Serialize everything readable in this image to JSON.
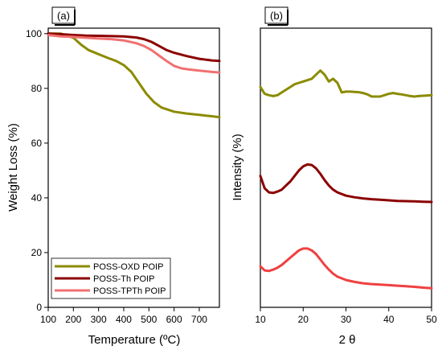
{
  "chart_data": [
    {
      "type": "line",
      "panel_label": "(a)",
      "xlabel": "Temperature (ºC)",
      "ylabel": "Weight Loss (%)",
      "xlim": [
        100,
        780
      ],
      "ylim": [
        0,
        102
      ],
      "xticks": [
        100,
        200,
        300,
        400,
        500,
        600,
        700
      ],
      "yticks": [
        0,
        20,
        40,
        60,
        80,
        100
      ],
      "grid": false,
      "legend_position": "bottom-left",
      "series": [
        {
          "name": "POSS-OXD POIP",
          "color": "#8b8b00",
          "x": [
            100,
            150,
            200,
            230,
            260,
            300,
            340,
            370,
            400,
            430,
            460,
            490,
            520,
            550,
            600,
            650,
            700,
            750,
            780
          ],
          "y": [
            100,
            100,
            98.5,
            96,
            94,
            92.5,
            91,
            90,
            88.5,
            86,
            82,
            78,
            75,
            73,
            71.5,
            70.8,
            70.3,
            69.8,
            69.5
          ]
        },
        {
          "name": "POSS-Th POIP",
          "color": "#8b0000",
          "x": [
            100,
            150,
            200,
            250,
            300,
            350,
            400,
            450,
            480,
            510,
            540,
            570,
            600,
            650,
            700,
            750,
            780
          ],
          "y": [
            100,
            99.8,
            99.5,
            99.3,
            99.2,
            99.1,
            99,
            98.6,
            98,
            97,
            95.5,
            94,
            93,
            91.8,
            90.8,
            90.2,
            90
          ]
        },
        {
          "name": "POSS-TPTh POIP",
          "color": "#f07070",
          "x": [
            100,
            150,
            200,
            250,
            300,
            350,
            400,
            450,
            480,
            510,
            540,
            570,
            600,
            630,
            660,
            700,
            750,
            780
          ],
          "y": [
            99.5,
            99,
            98.8,
            98.5,
            98.2,
            98,
            97.5,
            96.5,
            95.5,
            94,
            92,
            90,
            88.2,
            87.3,
            86.9,
            86.5,
            86,
            85.8
          ]
        }
      ]
    },
    {
      "type": "line",
      "panel_label": "(b)",
      "xlabel": "2 θ",
      "ylabel": "Intensity (%)",
      "xlim": [
        10,
        50
      ],
      "ylim": [
        0,
        102
      ],
      "xticks": [
        10,
        20,
        30,
        40,
        50
      ],
      "yticks": [],
      "grid": false,
      "series": [
        {
          "color": "#8b8b00",
          "x": [
            10,
            11,
            12,
            13,
            14,
            15,
            16,
            17,
            18,
            19,
            20,
            21,
            22,
            23,
            24,
            25,
            26,
            27,
            28,
            29,
            30,
            31,
            32,
            33,
            34,
            35,
            36,
            37,
            38,
            39,
            40,
            41,
            42,
            43,
            44,
            45,
            46,
            47,
            48,
            49,
            50
          ],
          "y": [
            80.5,
            78,
            77.5,
            77.2,
            77.5,
            78.5,
            79.5,
            80.5,
            81.5,
            82,
            82.5,
            83,
            83.5,
            85,
            86.5,
            85,
            82.5,
            83.5,
            82,
            78.5,
            78.8,
            78.8,
            78.7,
            78.6,
            78.3,
            77.8,
            77,
            77,
            77,
            77.5,
            78,
            78.3,
            78,
            77.8,
            77.5,
            77.2,
            77,
            77.2,
            77.3,
            77.4,
            77.5
          ]
        },
        {
          "color": "#8b0000",
          "x": [
            10,
            11,
            12,
            13,
            14,
            15,
            16,
            17,
            18,
            19,
            20,
            21,
            22,
            23,
            24,
            25,
            26,
            27,
            28,
            30,
            32,
            34,
            36,
            38,
            40,
            42,
            44,
            46,
            48,
            50
          ],
          "y": [
            48,
            43.5,
            42,
            41.8,
            42.3,
            43,
            44.5,
            46,
            48,
            50,
            51.5,
            52.2,
            52,
            50.8,
            48.8,
            46.5,
            44.5,
            43,
            42,
            40.8,
            40.2,
            39.8,
            39.5,
            39.3,
            39.1,
            38.9,
            38.8,
            38.7,
            38.6,
            38.5
          ]
        },
        {
          "color": "#f04040",
          "x": [
            10,
            11,
            12,
            13,
            14,
            15,
            16,
            17,
            18,
            19,
            20,
            21,
            22,
            23,
            24,
            25,
            26,
            27,
            28,
            30,
            32,
            34,
            36,
            38,
            40,
            42,
            44,
            46,
            48,
            50
          ],
          "y": [
            15,
            13.5,
            13.3,
            13.8,
            14.5,
            15.5,
            16.8,
            18.2,
            19.5,
            20.8,
            21.5,
            21.5,
            20.8,
            19.5,
            17.5,
            15.5,
            13.8,
            12.3,
            11.2,
            10,
            9.3,
            8.8,
            8.5,
            8.3,
            8.1,
            7.9,
            7.7,
            7.5,
            7.2,
            7
          ]
        }
      ]
    }
  ]
}
